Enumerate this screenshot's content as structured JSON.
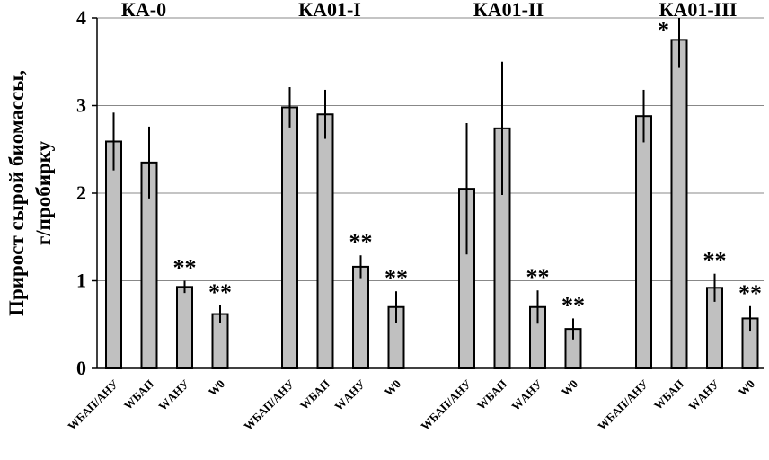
{
  "chart_data": {
    "type": "bar",
    "ylabel_lines": [
      "Прирост сырой биомассы,",
      "г/пробирку"
    ],
    "ylim": [
      0,
      4
    ],
    "yticks": [
      "0",
      "1",
      "2",
      "3",
      "4"
    ],
    "grid": true,
    "bar_color": "#c0c0c0",
    "groups": [
      {
        "title": "КА-0",
        "categories": [
          "WБАП/АНУ",
          "WБАП",
          "WАНУ",
          "W0"
        ],
        "values": [
          2.59,
          2.35,
          0.93,
          0.62
        ],
        "errors": [
          0.33,
          0.41,
          0.07,
          0.1
        ],
        "annotations": [
          "",
          "",
          "**",
          "**"
        ]
      },
      {
        "title": "КА01-I",
        "categories": [
          "WБАП/АНУ",
          "WБАП",
          "WАНУ",
          "W0"
        ],
        "values": [
          2.98,
          2.9,
          1.16,
          0.7
        ],
        "errors": [
          0.23,
          0.28,
          0.13,
          0.18
        ],
        "annotations": [
          "",
          "",
          "**",
          "**"
        ]
      },
      {
        "title": "КА01-II",
        "categories": [
          "WБАП/АНУ",
          "WБАП",
          "WАНУ",
          "W0"
        ],
        "values": [
          2.05,
          2.74,
          0.7,
          0.45
        ],
        "errors": [
          0.75,
          0.76,
          0.19,
          0.12
        ],
        "annotations": [
          "",
          "",
          "**",
          "**"
        ]
      },
      {
        "title": "КА01-III",
        "categories": [
          "WБАП/АНУ",
          "WБАП",
          "WАНУ",
          "W0"
        ],
        "values": [
          2.88,
          3.75,
          0.92,
          0.57
        ],
        "errors": [
          0.3,
          0.32,
          0.16,
          0.14
        ],
        "annotations": [
          "",
          "*",
          "**",
          "**"
        ]
      }
    ]
  }
}
